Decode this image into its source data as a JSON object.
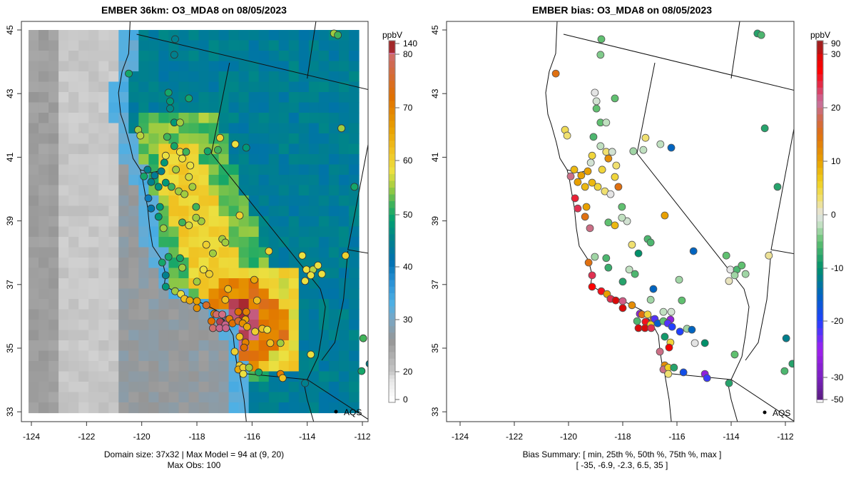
{
  "left_panel": {
    "title": "EMBER 36km: O3_MDA8 on 08/05/2023",
    "colorbar_unit": "ppbV",
    "colorbar_ticks": [
      "140",
      "80",
      "70",
      "60",
      "50",
      "40",
      "30",
      "20",
      "0"
    ],
    "footer_line1": "Domain size: 37x32 | Max Model = 94 at (9, 20)",
    "footer_line2": "Max Obs: 100",
    "legend_label": "AQS"
  },
  "right_panel": {
    "title": "EMBER bias: O3_MDA8 on 08/05/2023",
    "colorbar_unit": "ppbV",
    "colorbar_ticks": [
      "90",
      "30",
      "20",
      "10",
      "0",
      "-10",
      "-20",
      "-30",
      "-50"
    ],
    "footer_line1": "Bias Summary: [ min, 25th %, 50th %, 75th %, max ]",
    "footer_line2": "[ -35,   -6.9,   -2.3,   6.5,   35 ]",
    "legend_label": "AQS"
  },
  "axes": {
    "x_ticks": [
      "-124",
      "-122",
      "-120",
      "-118",
      "-116",
      "-114",
      "-112"
    ],
    "y_ticks": [
      "45",
      "43",
      "41",
      "39",
      "37",
      "35",
      "33"
    ]
  },
  "chart_data": {
    "type": "map",
    "model_colorbar_values": [
      140,
      80,
      70,
      60,
      50,
      40,
      30,
      20,
      0
    ],
    "bias_colorbar_values": [
      90,
      30,
      20,
      10,
      0,
      -10,
      -20,
      -30,
      -50
    ],
    "xlim": [
      -124.3,
      -111.8
    ],
    "ylim": [
      32.7,
      45.3
    ],
    "station_fields": [
      "lon",
      "lat",
      "obs_ppbV",
      "bias_ppbV"
    ],
    "stations": [
      [
        -120.47,
        43.63,
        50,
        15
      ],
      [
        -118.79,
        44.71,
        45,
        -5
      ],
      [
        -118.82,
        44.22,
        45,
        -4
      ],
      [
        -119.03,
        43.03,
        50,
        0
      ],
      [
        -118.97,
        42.76,
        48,
        -1
      ],
      [
        -118.97,
        42.53,
        46,
        -5
      ],
      [
        -118.29,
        42.85,
        50,
        -5
      ],
      [
        -118.82,
        42.09,
        48,
        -5
      ],
      [
        -118.61,
        42.09,
        55,
        -2
      ],
      [
        -120.13,
        41.86,
        55,
        4
      ],
      [
        -120.05,
        41.68,
        56,
        3
      ],
      [
        -119.08,
        41.64,
        52,
        -6
      ],
      [
        -119.13,
        41.05,
        58,
        5
      ],
      [
        -118.82,
        41.35,
        50,
        -2
      ],
      [
        -118.61,
        41.17,
        58,
        3
      ],
      [
        -118.53,
        40.96,
        58,
        12
      ],
      [
        -118.39,
        41.17,
        52,
        -1
      ],
      [
        -118.24,
        40.74,
        58,
        3
      ],
      [
        -118.29,
        40.38,
        57,
        5
      ],
      [
        -119.18,
        40.83,
        48,
        -1
      ],
      [
        -119.29,
        40.56,
        45,
        10
      ],
      [
        -119.53,
        40.43,
        44,
        10
      ],
      [
        -119.79,
        40.61,
        45,
        8
      ],
      [
        -119.92,
        40.4,
        50,
        20
      ],
      [
        -119.66,
        40.22,
        45,
        10
      ],
      [
        -119.39,
        40.07,
        47,
        8
      ],
      [
        -119.13,
        40.2,
        48,
        8
      ],
      [
        -118.92,
        40.07,
        52,
        5
      ],
      [
        -118.66,
        39.93,
        55,
        3
      ],
      [
        -118.45,
        39.84,
        55,
        0
      ],
      [
        -118.76,
        40.61,
        55,
        5
      ],
      [
        -119.76,
        39.71,
        40,
        25
      ],
      [
        -119.66,
        39.39,
        42,
        24
      ],
      [
        -119.34,
        39.44,
        48,
        10
      ],
      [
        -119.39,
        39.13,
        48,
        15
      ],
      [
        -119.21,
        38.77,
        55,
        20
      ],
      [
        -118.16,
        40.07,
        55,
        15
      ],
      [
        -117.16,
        41.61,
        60,
        3
      ],
      [
        -117.24,
        41.23,
        52,
        -2
      ],
      [
        -116.61,
        41.41,
        58,
        -2
      ],
      [
        -116.21,
        41.3,
        48,
        -15
      ],
      [
        -117.61,
        41.19,
        50,
        -3
      ],
      [
        -118.03,
        39.44,
        52,
        -5
      ],
      [
        -117.84,
        38.99,
        55,
        -1
      ],
      [
        -118.03,
        39.1,
        55,
        -2
      ],
      [
        -117.08,
        38.43,
        55,
        -6
      ],
      [
        -116.97,
        38.32,
        55,
        -6
      ],
      [
        -116.45,
        39.17,
        60,
        10
      ],
      [
        -117.66,
        38.25,
        60,
        3
      ],
      [
        -118.29,
        38.86,
        57,
        8
      ],
      [
        -118.53,
        38.95,
        52,
        -5
      ],
      [
        -119.26,
        37.69,
        50,
        15
      ],
      [
        -119.03,
        37.87,
        50,
        -3
      ],
      [
        -118.61,
        37.83,
        50,
        -6
      ],
      [
        -118.53,
        37.53,
        55,
        -7
      ],
      [
        -117.42,
        37.98,
        55,
        -10
      ],
      [
        -117.76,
        37.47,
        58,
        -2
      ],
      [
        -117.55,
        37.33,
        60,
        -6
      ],
      [
        -118.0,
        37.09,
        55,
        -8
      ],
      [
        -119.13,
        37.29,
        45,
        24
      ],
      [
        -119.13,
        36.93,
        48,
        27
      ],
      [
        -118.79,
        36.79,
        55,
        26
      ],
      [
        -118.58,
        36.7,
        58,
        10
      ],
      [
        -118.45,
        36.55,
        62,
        24
      ],
      [
        -118.26,
        36.5,
        65,
        30
      ],
      [
        -118.0,
        36.48,
        66,
        22
      ],
      [
        -116.87,
        36.86,
        62,
        -15
      ],
      [
        -116.97,
        36.52,
        62,
        -3
      ],
      [
        -115.92,
        37.15,
        65,
        -3
      ],
      [
        -115.39,
        38.05,
        60,
        -15
      ],
      [
        -115.82,
        36.5,
        62,
        -5
      ],
      [
        -118.0,
        36.26,
        68,
        30
      ],
      [
        -117.66,
        36.35,
        75,
        12
      ],
      [
        -117.37,
        36.08,
        70,
        -27
      ],
      [
        -117.29,
        36.06,
        80,
        15
      ],
      [
        -117.47,
        35.85,
        72,
        -6
      ],
      [
        -117.08,
        36.06,
        82,
        5
      ],
      [
        -116.87,
        35.9,
        85,
        18
      ],
      [
        -117.16,
        35.83,
        88,
        26
      ],
      [
        -116.97,
        35.74,
        85,
        6
      ],
      [
        -117.42,
        35.63,
        80,
        30
      ],
      [
        -117.18,
        35.63,
        85,
        30
      ],
      [
        -116.95,
        35.63,
        85,
        24
      ],
      [
        -116.82,
        35.92,
        70,
        -22
      ],
      [
        -116.71,
        35.78,
        72,
        -16
      ],
      [
        -116.5,
        35.85,
        75,
        -5
      ],
      [
        -116.5,
        36.14,
        72,
        -2
      ],
      [
        -116.21,
        36.14,
        70,
        -1
      ],
      [
        -116.24,
        35.9,
        65,
        -27
      ],
      [
        -116.34,
        35.78,
        68,
        -22
      ],
      [
        -116.18,
        35.67,
        65,
        -20
      ],
      [
        -115.89,
        35.52,
        60,
        -20
      ],
      [
        -115.63,
        35.61,
        62,
        -3
      ],
      [
        -115.45,
        35.58,
        58,
        -15
      ],
      [
        -116.45,
        35.36,
        62,
        -9
      ],
      [
        -116.24,
        35.18,
        70,
        5
      ],
      [
        -116.29,
        35.02,
        72,
        28
      ],
      [
        -115.34,
        35.16,
        62,
        0
      ],
      [
        -114.97,
        35.16,
        55,
        -10
      ],
      [
        -116.63,
        34.89,
        60,
        20
      ],
      [
        -116.45,
        34.46,
        60,
        12
      ],
      [
        -116.5,
        34.33,
        65,
        20
      ],
      [
        -116.32,
        34.39,
        60,
        6
      ],
      [
        -116.32,
        34.19,
        58,
        3
      ],
      [
        -116.11,
        34.39,
        55,
        -8
      ],
      [
        -115.76,
        34.24,
        50,
        -18
      ],
      [
        -114.97,
        34.19,
        70,
        -27
      ],
      [
        -114.89,
        34.06,
        62,
        -21
      ],
      [
        -114.08,
        33.9,
        45,
        -8
      ],
      [
        -113.87,
        34.8,
        58,
        -5
      ],
      [
        -114.18,
        37.91,
        58,
        -5
      ],
      [
        -114.03,
        37.47,
        58,
        0
      ],
      [
        -113.79,
        37.47,
        56,
        -6
      ],
      [
        -113.87,
        37.29,
        58,
        -3
      ],
      [
        -113.61,
        37.6,
        58,
        -5
      ],
      [
        -114.08,
        37.11,
        58,
        1
      ],
      [
        -113.47,
        37.33,
        58,
        -3
      ],
      [
        -112.61,
        37.91,
        60,
        2
      ],
      [
        -112.29,
        40.07,
        50,
        -8
      ],
      [
        -112.76,
        41.91,
        55,
        -8
      ],
      [
        -113.03,
        44.89,
        55,
        -8
      ],
      [
        -112.89,
        44.84,
        52,
        -6
      ],
      [
        -111.97,
        35.31,
        52,
        -12
      ],
      [
        -112.03,
        34.28,
        50,
        -6
      ],
      [
        -111.74,
        34.51,
        45,
        -8
      ]
    ]
  }
}
